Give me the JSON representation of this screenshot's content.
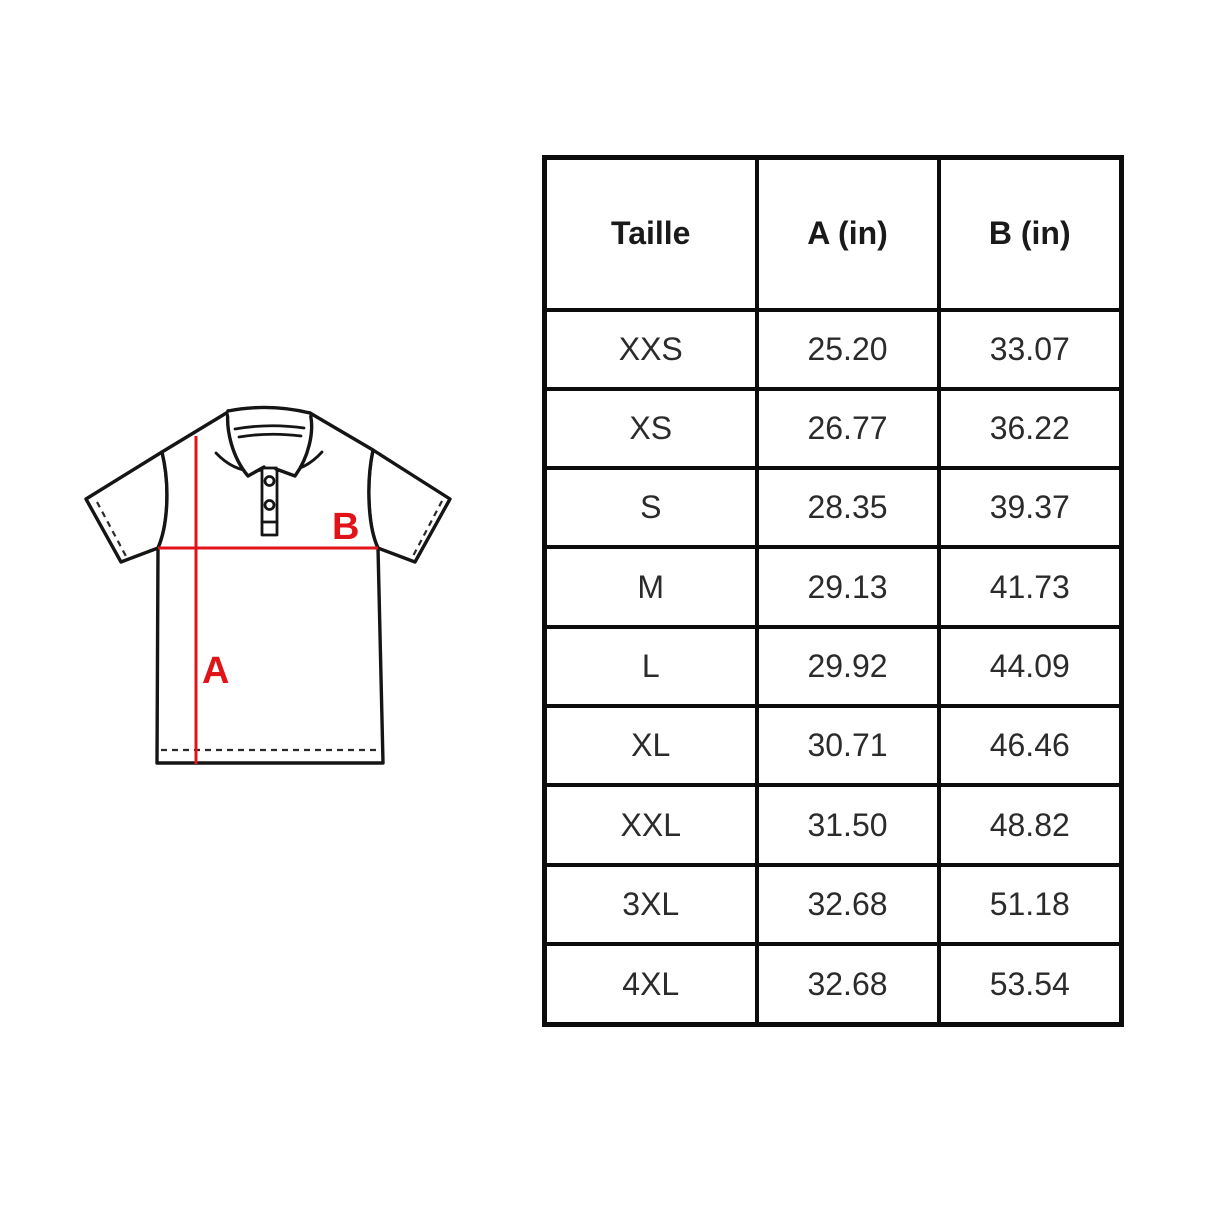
{
  "diagram": {
    "label_a": "A",
    "label_b": "B",
    "description": "polo-shirt technical drawing with length line A and chest width line B"
  },
  "table": {
    "headers": [
      "Taille",
      "A (in)",
      "B (in)"
    ],
    "rows": [
      [
        "XXS",
        "25.20",
        "33.07"
      ],
      [
        "XS",
        "26.77",
        "36.22"
      ],
      [
        "S",
        "28.35",
        "39.37"
      ],
      [
        "M",
        "29.13",
        "41.73"
      ],
      [
        "L",
        "29.92",
        "44.09"
      ],
      [
        "XL",
        "30.71",
        "46.46"
      ],
      [
        "XXL",
        "31.50",
        "48.82"
      ],
      [
        "3XL",
        "32.68",
        "51.18"
      ],
      [
        "4XL",
        "32.68",
        "53.54"
      ]
    ]
  },
  "colors": {
    "accent_red": "#e01418",
    "line_black": "#151515",
    "border_black": "#0c0c0c"
  }
}
